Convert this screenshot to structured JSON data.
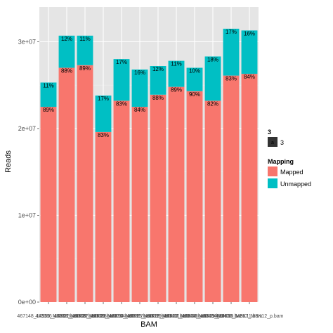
{
  "chart_data": {
    "type": "bar",
    "stacked": true,
    "xlabel": "BAM",
    "ylabel": "Reads",
    "ylim": [
      0,
      34000000
    ],
    "yticks": [
      0,
      10000000,
      20000000,
      30000000
    ],
    "ytick_labels": [
      "0e+00",
      "1e+07",
      "2e+07",
      "3e+07"
    ],
    "grid": true,
    "legend_position": "right",
    "categories": [
      "467148_14506_MSK01.bam",
      "483366_14507_MSK02.bam",
      "483383_14508_MSK03.bam",
      "483387_14509_MSK04.bam",
      "483388_14510_MSK05.bam",
      "483394_14511_MSK06.bam",
      "483397_14512_MSK07.bam",
      "483399_14513_MSK08.bam",
      "483401_14514_MSK09.bam",
      "483403_14515_MSK10.bam",
      "483404_14516_MSK11.bam",
      "483410_14517_MSK12_p.bam"
    ],
    "series": [
      {
        "name": "Mapped",
        "color": "#F8766D",
        "values": [
          22500000,
          27000000,
          27300000,
          19600000,
          23200000,
          22500000,
          23900000,
          24800000,
          24300000,
          23200000,
          26100000,
          26300000
        ],
        "labels": [
          "89%",
          "88%",
          "89%",
          "83%",
          "83%",
          "84%",
          "88%",
          "89%",
          "90%",
          "82%",
          "83%",
          "84%"
        ]
      },
      {
        "name": "Unmapped",
        "color": "#00BFC4",
        "values": [
          2800000,
          3700000,
          3400000,
          4200000,
          4800000,
          4300000,
          3300000,
          3000000,
          2700000,
          5100000,
          5400000,
          5000000
        ],
        "labels": [
          "11%",
          "12%",
          "11%",
          "17%",
          "17%",
          "16%",
          "12%",
          "11%",
          "10%",
          "18%",
          "17%",
          "16%"
        ]
      }
    ],
    "legend": [
      {
        "title": "3",
        "items": [
          {
            "label": "3",
            "key": "a"
          }
        ]
      },
      {
        "title": "Mapping",
        "items": [
          {
            "label": "Mapped",
            "color": "#F8766D"
          },
          {
            "label": "Unmapped",
            "color": "#00BFC4"
          }
        ]
      }
    ]
  }
}
